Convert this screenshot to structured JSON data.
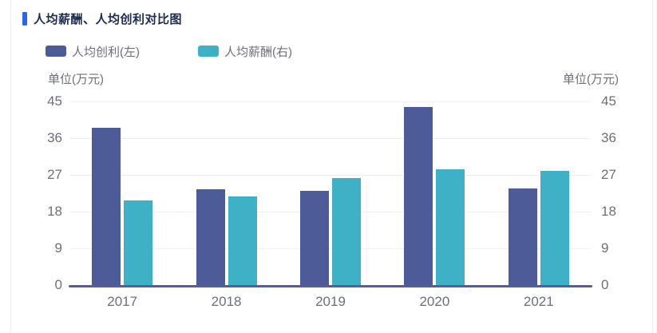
{
  "header": {
    "title": "人均薪酬、人均创利对比图",
    "marker_color": "#2468f2"
  },
  "legend": {
    "items": [
      {
        "label": "人均创利(左)",
        "color": "#4d5b99"
      },
      {
        "label": "人均薪酬(右)",
        "color": "#3fb1c6"
      }
    ]
  },
  "units": {
    "left": "单位(万元)",
    "right": "单位(万元)"
  },
  "colors": {
    "bar_profit": "#4d5b99",
    "bar_salary": "#3fb1c6",
    "axis_line": "#565e93",
    "gridline": "#f0f1f8",
    "axis_text": "#6e7079",
    "title_text": "#1c2b50",
    "title_marker": "#2468f2",
    "card_border": "#eceef2"
  },
  "chart_data": {
    "type": "bar",
    "title": "人均薪酬、人均创利对比图",
    "categories": [
      "2017",
      "2018",
      "2019",
      "2020",
      "2021"
    ],
    "series": [
      {
        "name": "人均创利(左)",
        "axis": "left",
        "color": "#4d5b99",
        "values": [
          38.6,
          23.5,
          23.1,
          43.7,
          23.7
        ]
      },
      {
        "name": "人均薪酬(右)",
        "axis": "right",
        "color": "#3fb1c6",
        "values": [
          20.7,
          21.7,
          26.2,
          28.3,
          27.9
        ]
      }
    ],
    "ylabel_left": "单位(万元)",
    "ylabel_right": "单位(万元)",
    "y_ticks": [
      0,
      9,
      18,
      27,
      36,
      45
    ],
    "ylim": [
      0,
      45
    ],
    "ylim_right": [
      0,
      45
    ],
    "grid": true,
    "legend_position": "top-left"
  }
}
